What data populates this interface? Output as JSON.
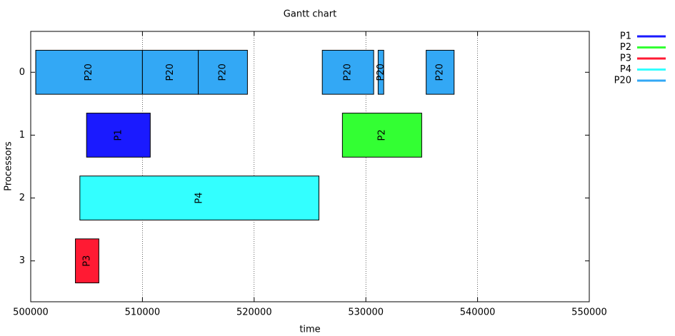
{
  "chart_data": {
    "type": "gantt",
    "title": "Gantt chart",
    "xlabel": "time",
    "ylabel": "Processors",
    "xlim": [
      500000,
      550000
    ],
    "xticks": [
      500000,
      510000,
      520000,
      530000,
      540000,
      550000
    ],
    "ylim": [
      -0.65,
      3.65
    ],
    "yticks": [
      0,
      1,
      2,
      3
    ],
    "grid": true,
    "legend": "outside-right",
    "series": [
      {
        "name": "P1",
        "color": "#1a1aff",
        "processors": [
          1
        ],
        "starts": [
          505000
        ],
        "ends": [
          510700
        ]
      },
      {
        "name": "P2",
        "color": "#33ff33",
        "processors": [
          1
        ],
        "starts": [
          527900
        ],
        "ends": [
          535000
        ]
      },
      {
        "name": "P3",
        "color": "#ff1a33",
        "processors": [
          3
        ],
        "starts": [
          504000
        ],
        "ends": [
          506100
        ]
      },
      {
        "name": "P4",
        "color": "#33ffff",
        "processors": [
          2
        ],
        "starts": [
          504400
        ],
        "ends": [
          525800
        ]
      },
      {
        "name": "P20",
        "color": "#33a8f5",
        "processors": [
          0,
          0,
          0,
          0,
          0,
          0
        ],
        "starts": [
          500450,
          510000,
          515000,
          526100,
          531100,
          535400
        ],
        "ends": [
          510000,
          515000,
          519400,
          530700,
          531600,
          537900
        ]
      }
    ]
  }
}
